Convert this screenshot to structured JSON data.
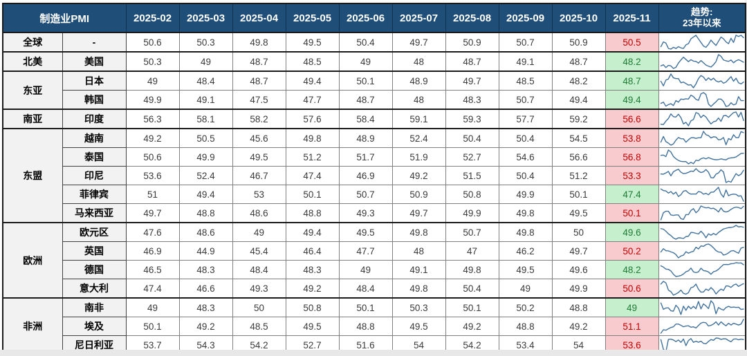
{
  "colors": {
    "header_bg": "#1F4E79",
    "header_text": "#ffffff",
    "above50_bg": "#F8CBCE",
    "above50_text": "#C00000",
    "below50_bg": "#C6EFCE",
    "below50_text": "#1E7B34",
    "label_bg": "#F2F2F2",
    "sparkline": "#41719C"
  },
  "chart_data": {
    "type": "table",
    "title": "制造业PMI",
    "trend_header_line1": "趋势:",
    "trend_header_line2": "23年以来",
    "months": [
      "2025-02",
      "2025-03",
      "2025-04",
      "2025-05",
      "2025-06",
      "2025-07",
      "2025-08",
      "2025-09",
      "2025-10",
      "2025-11"
    ],
    "groups": [
      {
        "region": "全球",
        "rows": [
          {
            "name": "-",
            "values": [
              "50.6",
              "50.3",
              "49.8",
              "49.5",
              "50.4",
              "49.7",
              "50.9",
              "50.7",
              "50.9",
              "50.5"
            ],
            "status": "above",
            "trend": [
              49.0,
              49.8,
              49.6,
              48.7,
              48.6,
              48.9,
              48.7,
              49.0,
              48.8,
              48.7,
              49.3,
              49.5,
              50.3,
              50.6,
              50.9,
              50.3,
              49.7,
              49.1,
              48.9,
              49.4,
              50.1,
              49.6,
              49.2,
              49.9,
              50.6,
              50.3,
              49.8,
              49.5,
              50.4,
              49.7,
              50.9,
              50.7,
              50.9,
              50.5
            ]
          }
        ]
      },
      {
        "region": "北美",
        "rows": [
          {
            "name": "美国",
            "values": [
              "50.3",
              "49",
              "48.7",
              "48.5",
              "49",
              "48",
              "48.7",
              "49.1",
              "48.7",
              "48.2"
            ],
            "status": "below",
            "trend": [
              46.9,
              47.3,
              46.3,
              47.1,
              46.9,
              46.0,
              46.4,
              47.9,
              49.0,
              50.0,
              49.2,
              48.4,
              49.1,
              48.6,
              48.5,
              47.9,
              48.8,
              48.0,
              47.2,
              46.8,
              46.5,
              47.3,
              48.4,
              50.9,
              50.3,
              49.0,
              48.7,
              48.5,
              49.0,
              48.0,
              48.7,
              49.1,
              48.7,
              48.2
            ]
          }
        ]
      },
      {
        "region": "东亚",
        "rows": [
          {
            "name": "日本",
            "values": [
              "49",
              "48.4",
              "48.7",
              "49.4",
              "50.1",
              "48.9",
              "49.7",
              "48.5",
              "48.2",
              "48.7"
            ],
            "status": "below",
            "trend": [
              48.9,
              47.7,
              49.2,
              49.5,
              50.8,
              49.8,
              49.6,
              49.6,
              48.5,
              48.7,
              48.3,
              47.9,
              48.0,
              47.2,
              48.2,
              49.6,
              50.4,
              50.0,
              49.1,
              49.8,
              49.2,
              49.7,
              49.0,
              48.7,
              49.0,
              48.4,
              48.7,
              49.4,
              50.1,
              48.9,
              49.7,
              48.5,
              48.2,
              48.7
            ]
          },
          {
            "name": "韩国",
            "values": [
              "49.9",
              "49.1",
              "47.5",
              "47.7",
              "48.7",
              "48",
              "48.3",
              "50.7",
              "49.4",
              "49.4"
            ],
            "status": "below",
            "trend": [
              48.5,
              48.9,
              47.6,
              48.1,
              48.4,
              47.8,
              49.4,
              48.9,
              49.9,
              49.8,
              50.0,
              49.9,
              51.2,
              50.7,
              49.8,
              49.5,
              51.6,
              52.0,
              51.4,
              48.3,
              47.5,
              48.3,
              49.0,
              49.9,
              49.9,
              49.1,
              47.5,
              47.7,
              48.7,
              48.0,
              48.3,
              50.7,
              49.4,
              49.4
            ]
          }
        ]
      },
      {
        "region": "南亚",
        "rows": [
          {
            "name": "印度",
            "values": [
              "56.3",
              "58.1",
              "58.2",
              "57.6",
              "58.4",
              "59.1",
              "59.3",
              "57.7",
              "59.2",
              "56.6"
            ],
            "status": "above",
            "trend": [
              55.4,
              55.3,
              56.4,
              57.2,
              58.7,
              57.8,
              57.7,
              58.6,
              57.5,
              55.5,
              56.0,
              54.9,
              56.5,
              56.9,
              59.1,
              58.8,
              57.5,
              58.3,
              57.7,
              56.5,
              55.5,
              56.2,
              56.4,
              57.4,
              56.3,
              58.1,
              58.2,
              57.6,
              58.4,
              59.1,
              59.3,
              57.7,
              59.2,
              56.6
            ]
          }
        ]
      },
      {
        "region": "东盟",
        "rows": [
          {
            "name": "越南",
            "values": [
              "49.2",
              "50.5",
              "45.6",
              "49.8",
              "48.9",
              "52.4",
              "50.4",
              "50.4",
              "54.5",
              "53.8"
            ],
            "status": "above",
            "trend": [
              47.4,
              51.2,
              47.7,
              46.7,
              45.3,
              46.2,
              48.7,
              50.5,
              49.7,
              49.6,
              47.3,
              48.9,
              50.3,
              50.4,
              49.9,
              50.3,
              50.3,
              54.7,
              52.4,
              51.8,
              50.2,
              51.0,
              50.8,
              48.9,
              49.2,
              50.5,
              45.6,
              49.8,
              48.9,
              52.4,
              50.4,
              50.4,
              54.5,
              53.8
            ]
          },
          {
            "name": "泰国",
            "values": [
              "50.6",
              "49.9",
              "49.5",
              "51.2",
              "51.7",
              "51.9",
              "52.7",
              "54.6",
              "56.6",
              "56.8"
            ],
            "status": "above",
            "trend": [
              54.5,
              54.8,
              53.1,
              60.4,
              58.2,
              53.2,
              50.7,
              48.9,
              47.8,
              47.5,
              47.6,
              45.1,
              46.7,
              45.3,
              49.1,
              48.6,
              50.7,
              51.7,
              50.6,
              52.0,
              50.9,
              50.0,
              49.6,
              49.8,
              50.6,
              49.9,
              49.5,
              51.2,
              51.7,
              51.9,
              52.7,
              54.6,
              56.6,
              56.8
            ]
          },
          {
            "name": "印尼",
            "values": [
              "53.6",
              "52.4",
              "46.7",
              "47.4",
              "46.9",
              "49.2",
              "51.5",
              "50.4",
              "51.2",
              "53.3"
            ],
            "status": "above",
            "trend": [
              51.3,
              51.2,
              51.9,
              52.7,
              50.3,
              52.5,
              53.3,
              53.9,
              52.3,
              51.5,
              51.7,
              52.2,
              52.9,
              52.7,
              54.2,
              52.9,
              52.1,
              52.5,
              53.7,
              52.3,
              49.3,
              49.2,
              51.2,
              51.9,
              53.6,
              52.4,
              46.7,
              47.4,
              46.9,
              49.2,
              51.5,
              50.4,
              51.2,
              53.3
            ]
          },
          {
            "name": "菲律宾",
            "values": [
              "51",
              "49.4",
              "53",
              "50.1",
              "50.7",
              "50.9",
              "50.8",
              "49.9",
              "50.1",
              "47.4"
            ],
            "status": "below",
            "trend": [
              53.5,
              52.7,
              52.5,
              51.4,
              52.2,
              50.9,
              51.9,
              49.7,
              50.6,
              52.4,
              52.7,
              51.5,
              50.9,
              51.0,
              50.9,
              52.2,
              51.9,
              50.9,
              51.3,
              50.6,
              51.9,
              51.9,
              53.1,
              54.3,
              51.0,
              49.4,
              53.0,
              50.1,
              50.7,
              50.9,
              50.8,
              49.9,
              50.1,
              47.4
            ]
          },
          {
            "name": "马来西亚",
            "values": [
              "49.7",
              "48.8",
              "48.6",
              "48.8",
              "49.3",
              "49.7",
              "49.9",
              "49.8",
              "49.5",
              "50.1"
            ],
            "status": "above",
            "trend": [
              46.5,
              48.4,
              48.8,
              48.8,
              47.8,
              47.7,
              47.8,
              47.8,
              46.8,
              46.6,
              47.9,
              47.9,
              49.0,
              49.5,
              48.4,
              49.0,
              50.2,
              49.9,
              49.7,
              49.8,
              49.5,
              49.6,
              49.2,
              48.6,
              49.7,
              48.8,
              48.6,
              48.8,
              49.3,
              49.7,
              49.9,
              49.8,
              49.5,
              50.1
            ]
          }
        ]
      },
      {
        "region": "欧洲",
        "rows": [
          {
            "name": "欧元区",
            "values": [
              "47.6",
              "48.6",
              "49",
              "49.4",
              "49.5",
              "49.8",
              "50.7",
              "49.8",
              "50",
              "49.6"
            ],
            "status": "below",
            "trend": [
              48.8,
              48.5,
              47.3,
              45.8,
              44.8,
              43.4,
              42.7,
              43.5,
              43.4,
              43.1,
              44.2,
              44.4,
              46.6,
              46.5,
              46.1,
              45.7,
              47.3,
              45.8,
              43.5,
              45.8,
              45.0,
              46.0,
              45.2,
              46.6,
              47.6,
              48.6,
              49.0,
              49.4,
              49.5,
              49.8,
              50.7,
              49.8,
              50.0,
              49.6
            ]
          },
          {
            "name": "英国",
            "values": [
              "46.9",
              "44.9",
              "45.4",
              "46.4",
              "47.7",
              "48",
              "47",
              "46.2",
              "49.7",
              "50.2"
            ],
            "status": "above",
            "trend": [
              47.0,
              49.3,
              47.9,
              47.8,
              47.1,
              46.5,
              45.3,
              43.0,
              44.3,
              44.8,
              47.2,
              46.2,
              47.0,
              47.5,
              50.3,
              49.1,
              51.2,
              50.9,
              52.1,
              52.5,
              51.5,
              49.9,
              48.0,
              47.0,
              46.9,
              44.9,
              45.4,
              46.4,
              47.7,
              48.0,
              47.0,
              46.2,
              49.7,
              50.2
            ]
          },
          {
            "name": "德国",
            "values": [
              "46.5",
              "48.3",
              "48.4",
              "48.3",
              "49",
              "49.1",
              "49.8",
              "49.5",
              "49.6",
              "48.2"
            ],
            "status": "below",
            "trend": [
              47.3,
              46.3,
              44.7,
              44.5,
              43.2,
              40.6,
              38.8,
              39.1,
              39.6,
              40.8,
              42.6,
              43.3,
              45.5,
              42.5,
              41.9,
              42.5,
              45.4,
              43.5,
              43.2,
              42.4,
              40.6,
              42.6,
              43.2,
              44.5,
              46.5,
              48.3,
              48.4,
              48.3,
              49.0,
              49.1,
              49.8,
              49.5,
              49.6,
              48.2
            ]
          },
          {
            "name": "意大利",
            "values": [
              "47.4",
              "46.6",
              "49.3",
              "49.2",
              "48.4",
              "49.8",
              "50.4",
              "49",
              "49.9",
              "50.6"
            ],
            "status": "above",
            "trend": [
              50.4,
              52.0,
              51.1,
              46.8,
              45.9,
              43.8,
              44.5,
              45.4,
              46.8,
              44.9,
              44.4,
              45.3,
              48.2,
              48.7,
              50.4,
              47.3,
              45.6,
              45.7,
              47.4,
              46.6,
              48.3,
              46.9,
              44.5,
              46.2,
              47.4,
              46.6,
              49.3,
              49.2,
              48.4,
              49.8,
              50.4,
              49.0,
              49.9,
              50.6
            ]
          }
        ]
      },
      {
        "region": "非洲",
        "rows": [
          {
            "name": "南非",
            "values": [
              "49",
              "48.3",
              "50",
              "50.8",
              "50.1",
              "50.3",
              "50.1",
              "50.2",
              "48.8",
              "49"
            ],
            "status": "below",
            "trend": [
              53.0,
              48.8,
              49.7,
              49.8,
              47.9,
              47.6,
              51.5,
              49.7,
              45.4,
              50.9,
              48.2,
              50.9,
              49.2,
              50.8,
              49.2,
              54.0,
              49.1,
              52.4,
              51.1,
              49.3,
              54.5,
              52.6,
              45.9,
              50.0,
              49.0,
              48.3,
              50.0,
              50.8,
              50.1,
              50.3,
              50.1,
              50.2,
              48.8,
              49.0
            ]
          },
          {
            "name": "埃及",
            "values": [
              "50.1",
              "49.2",
              "48.5",
              "49.5",
              "48.8",
              "49.5",
              "49.2",
              "48.8",
              "49.2",
              "51.1"
            ],
            "status": "above",
            "trend": [
              45.5,
              46.9,
              46.7,
              47.3,
              47.8,
              48.1,
              49.2,
              49.2,
              48.7,
              48.1,
              48.4,
              48.5,
              47.9,
              48.1,
              47.6,
              48.6,
              49.6,
              49.9,
              49.7,
              48.4,
              48.7,
              49.2,
              50.1,
              48.8,
              50.1,
              49.2,
              48.5,
              49.5,
              48.8,
              49.5,
              49.2,
              48.8,
              49.2,
              51.1
            ]
          },
          {
            "name": "尼日利亚",
            "values": [
              "53.7",
              "54.3",
              "54.2",
              "52.7",
              "51.6",
              "54",
              "54.2",
              "53.4",
              "54",
              "53.6"
            ],
            "status": "above",
            "trend": [
              53.5,
              44.7,
              42.3,
              53.8,
              54.0,
              53.2,
              51.7,
              53.2,
              51.0,
              54.1,
              48.0,
              52.7,
              54.5,
              51.0,
              52.1,
              51.1,
              52.1,
              50.1,
              49.7,
              51.9,
              53.6,
              52.9,
              55.0,
              54.8,
              53.7,
              54.3,
              54.2,
              52.7,
              51.6,
              54.0,
              54.2,
              53.4,
              54.0,
              53.6
            ]
          }
        ]
      }
    ]
  }
}
